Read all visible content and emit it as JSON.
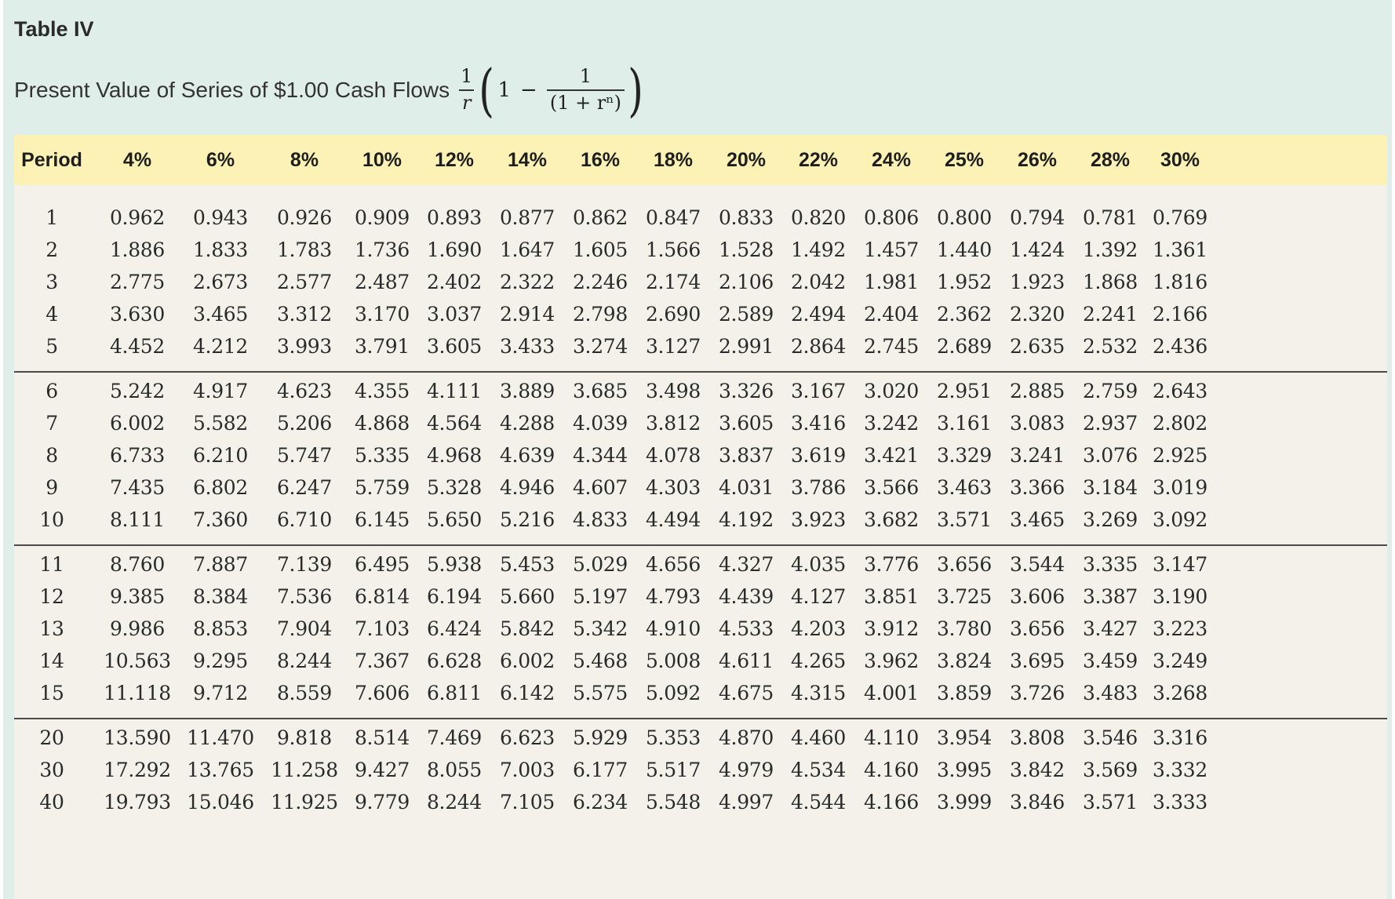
{
  "header": {
    "table_label": "Table IV",
    "subtitle": "Present Value of Series of $1.00 Cash Flows",
    "formula": {
      "lead_num": "1",
      "lead_den": "r",
      "open_paren": "(",
      "one": "1",
      "minus": "−",
      "inner_num": "1",
      "inner_den": "(1 + rⁿ)",
      "close_paren": ")"
    }
  },
  "table": {
    "columns": [
      "Period",
      "4%",
      "6%",
      "8%",
      "10%",
      "12%",
      "14%",
      "16%",
      "18%",
      "20%",
      "22%",
      "24%",
      "25%",
      "26%",
      "28%",
      "30%"
    ],
    "groups": [
      [
        [
          "1",
          "0.962",
          "0.943",
          "0.926",
          "0.909",
          "0.893",
          "0.877",
          "0.862",
          "0.847",
          "0.833",
          "0.820",
          "0.806",
          "0.800",
          "0.794",
          "0.781",
          "0.769"
        ],
        [
          "2",
          "1.886",
          "1.833",
          "1.783",
          "1.736",
          "1.690",
          "1.647",
          "1.605",
          "1.566",
          "1.528",
          "1.492",
          "1.457",
          "1.440",
          "1.424",
          "1.392",
          "1.361"
        ],
        [
          "3",
          "2.775",
          "2.673",
          "2.577",
          "2.487",
          "2.402",
          "2.322",
          "2.246",
          "2.174",
          "2.106",
          "2.042",
          "1.981",
          "1.952",
          "1.923",
          "1.868",
          "1.816"
        ],
        [
          "4",
          "3.630",
          "3.465",
          "3.312",
          "3.170",
          "3.037",
          "2.914",
          "2.798",
          "2.690",
          "2.589",
          "2.494",
          "2.404",
          "2.362",
          "2.320",
          "2.241",
          "2.166"
        ],
        [
          "5",
          "4.452",
          "4.212",
          "3.993",
          "3.791",
          "3.605",
          "3.433",
          "3.274",
          "3.127",
          "2.991",
          "2.864",
          "2.745",
          "2.689",
          "2.635",
          "2.532",
          "2.436"
        ]
      ],
      [
        [
          "6",
          "5.242",
          "4.917",
          "4.623",
          "4.355",
          "4.111",
          "3.889",
          "3.685",
          "3.498",
          "3.326",
          "3.167",
          "3.020",
          "2.951",
          "2.885",
          "2.759",
          "2.643"
        ],
        [
          "7",
          "6.002",
          "5.582",
          "5.206",
          "4.868",
          "4.564",
          "4.288",
          "4.039",
          "3.812",
          "3.605",
          "3.416",
          "3.242",
          "3.161",
          "3.083",
          "2.937",
          "2.802"
        ],
        [
          "8",
          "6.733",
          "6.210",
          "5.747",
          "5.335",
          "4.968",
          "4.639",
          "4.344",
          "4.078",
          "3.837",
          "3.619",
          "3.421",
          "3.329",
          "3.241",
          "3.076",
          "2.925"
        ],
        [
          "9",
          "7.435",
          "6.802",
          "6.247",
          "5.759",
          "5.328",
          "4.946",
          "4.607",
          "4.303",
          "4.031",
          "3.786",
          "3.566",
          "3.463",
          "3.366",
          "3.184",
          "3.019"
        ],
        [
          "10",
          "8.111",
          "7.360",
          "6.710",
          "6.145",
          "5.650",
          "5.216",
          "4.833",
          "4.494",
          "4.192",
          "3.923",
          "3.682",
          "3.571",
          "3.465",
          "3.269",
          "3.092"
        ]
      ],
      [
        [
          "11",
          "8.760",
          "7.887",
          "7.139",
          "6.495",
          "5.938",
          "5.453",
          "5.029",
          "4.656",
          "4.327",
          "4.035",
          "3.776",
          "3.656",
          "3.544",
          "3.335",
          "3.147"
        ],
        [
          "12",
          "9.385",
          "8.384",
          "7.536",
          "6.814",
          "6.194",
          "5.660",
          "5.197",
          "4.793",
          "4.439",
          "4.127",
          "3.851",
          "3.725",
          "3.606",
          "3.387",
          "3.190"
        ],
        [
          "13",
          "9.986",
          "8.853",
          "7.904",
          "7.103",
          "6.424",
          "5.842",
          "5.342",
          "4.910",
          "4.533",
          "4.203",
          "3.912",
          "3.780",
          "3.656",
          "3.427",
          "3.223"
        ],
        [
          "14",
          "10.563",
          "9.295",
          "8.244",
          "7.367",
          "6.628",
          "6.002",
          "5.468",
          "5.008",
          "4.611",
          "4.265",
          "3.962",
          "3.824",
          "3.695",
          "3.459",
          "3.249"
        ],
        [
          "15",
          "11.118",
          "9.712",
          "8.559",
          "7.606",
          "6.811",
          "6.142",
          "5.575",
          "5.092",
          "4.675",
          "4.315",
          "4.001",
          "3.859",
          "3.726",
          "3.483",
          "3.268"
        ]
      ],
      [
        [
          "20",
          "13.590",
          "11.470",
          "9.818",
          "8.514",
          "7.469",
          "6.623",
          "5.929",
          "5.353",
          "4.870",
          "4.460",
          "4.110",
          "3.954",
          "3.808",
          "3.546",
          "3.316"
        ],
        [
          "30",
          "17.292",
          "13.765",
          "11.258",
          "9.427",
          "8.055",
          "7.003",
          "6.177",
          "5.517",
          "4.979",
          "4.534",
          "4.160",
          "3.995",
          "3.842",
          "3.569",
          "3.332"
        ],
        [
          "40",
          "19.793",
          "15.046",
          "11.925",
          "9.779",
          "8.244",
          "7.105",
          "6.234",
          "5.548",
          "4.997",
          "4.544",
          "4.166",
          "3.999",
          "3.846",
          "3.571",
          "3.333"
        ]
      ]
    ]
  },
  "colors": {
    "frame_background": "#dfeee8",
    "header_band": "#fdf2b6",
    "table_background": "#f3f1e9",
    "separator": "#4a4a4a"
  }
}
